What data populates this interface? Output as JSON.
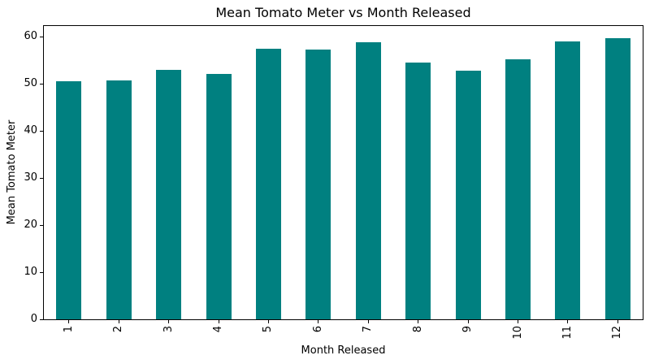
{
  "chart_data": {
    "type": "bar",
    "title": "Mean Tomato Meter vs Month Released",
    "xlabel": "Month Released",
    "ylabel": "Mean Tomato Meter",
    "categories": [
      "1",
      "2",
      "3",
      "4",
      "5",
      "6",
      "7",
      "8",
      "9",
      "10",
      "11",
      "12"
    ],
    "values": [
      50.5,
      50.7,
      53.0,
      52.2,
      57.5,
      57.3,
      58.9,
      54.5,
      52.8,
      55.3,
      59.1,
      59.8
    ],
    "series_name": "Mean Tomato Meter",
    "yticks": [
      0,
      10,
      20,
      30,
      40,
      50,
      60
    ],
    "ylim": [
      0,
      62.3
    ],
    "bar_color": "#008080",
    "bar_width_fraction": 0.5,
    "x_tick_rotation": 90,
    "grid": false,
    "legend_position": "none",
    "spine_color": "#000000",
    "background_color": "#ffffff"
  }
}
